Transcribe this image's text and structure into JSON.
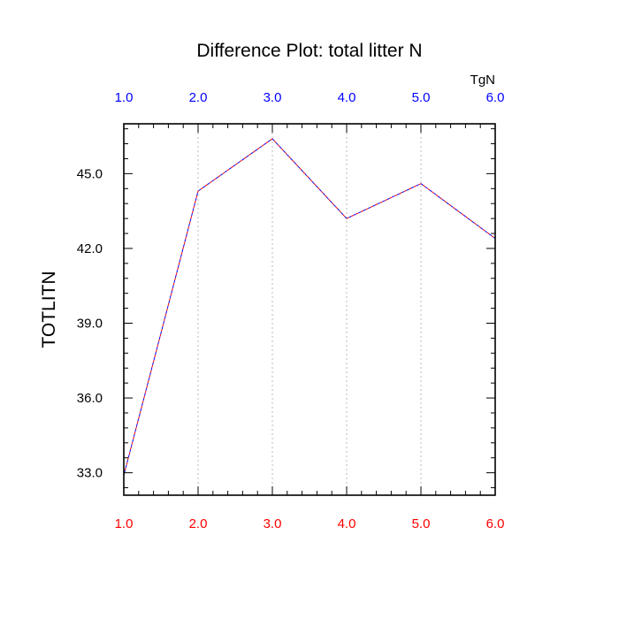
{
  "chart_data": {
    "type": "line",
    "title": "Difference Plot: total litter N",
    "ylabel": "TOTLITN",
    "top_axis_units": "TgN",
    "x": [
      1.0,
      2.0,
      3.0,
      4.0,
      5.0,
      6.0
    ],
    "x_ticks": [
      "1.0",
      "2.0",
      "3.0",
      "4.0",
      "5.0",
      "6.0"
    ],
    "top_x_ticks": [
      "1.0",
      "2.0",
      "3.0",
      "4.0",
      "5.0",
      "6.0"
    ],
    "y_ticks": [
      {
        "value": 33.0,
        "label": "33.0"
      },
      {
        "value": 36.0,
        "label": "36.0"
      },
      {
        "value": 39.0,
        "label": "39.0"
      },
      {
        "value": 42.0,
        "label": "42.0"
      },
      {
        "value": 45.0,
        "label": "45.0"
      }
    ],
    "xlim": [
      1.0,
      6.0
    ],
    "ylim": [
      32.1,
      47.0
    ],
    "grid": "vertical dotted at major x ticks",
    "series": [
      {
        "values": [
          32.9,
          44.3,
          46.4,
          43.2,
          44.6,
          42.4
        ],
        "color": "#ff0000",
        "dash": "dashed"
      },
      {
        "values": [
          32.9,
          44.3,
          46.4,
          43.2,
          44.6,
          42.4
        ],
        "color": "#0000ff",
        "dash": "dashed-offset"
      }
    ],
    "colors": {
      "bottom_tick_labels": "#ff0000",
      "top_tick_labels": "#0000ff",
      "grid": "#bbbbbb",
      "frame": "#000000"
    }
  }
}
